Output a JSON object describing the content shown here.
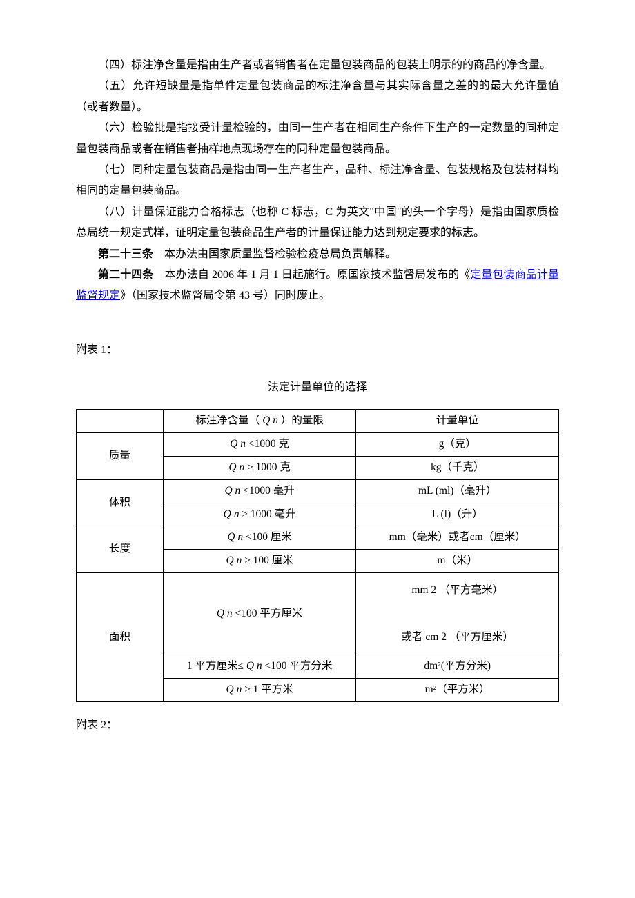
{
  "paragraphs": {
    "p4": "（四）标注净含量是指由生产者或者销售者在定量包装商品的包装上明示的的商品的净含量。",
    "p5": "（五）允许短缺量是指单件定量包装商品的标注净含量与其实际含量之差的的最大允许量值（或者数量）。",
    "p6": "（六）检验批是指接受计量检验的，由同一生产者在相同生产条件下生产的一定数量的同种定量包装商品或者在销售者抽样地点现场存在的同种定量包装商品。",
    "p7": "（七）同种定量包装商品是指由同一生产者生产，品种、标注净含量、包装规格及包装材料均相同的定量包装商品。",
    "p8": "（八）计量保证能力合格标志（也称 C 标志，C 为英文\"中国\"的头一个字母）是指由国家质检总局统一规定式样，证明定量包装商品生产者的计量保证能力达到规定要求的标志。"
  },
  "article23": {
    "label": "第二十三条",
    "text": "　本办法由国家质量监督检验检疫总局负责解释。"
  },
  "article24": {
    "label": "第二十四条",
    "text_before": "　本办法自 2006 年 1 月 1 日起施行。原国家技术监督局发布的《",
    "link_text": "定量包装商品计量监督规定",
    "text_after": "》（国家技术监督局令第 43 号）同时废止。"
  },
  "attachment1": {
    "label": "附表 1：",
    "title": "法定计量单位的选择",
    "header_col2": "标注净含量（ Q n ）的量限",
    "header_col3": "计量单位",
    "rows": [
      {
        "cat": "质量",
        "span": 2,
        "q": "Q n <1000 克",
        "u": "g（克）"
      },
      {
        "q": "Q n ≥ 1000 克",
        "u": "kg（千克）"
      },
      {
        "cat": "体积",
        "span": 2,
        "q": "Q n <1000 毫升",
        "u": "mL (ml)（毫升）"
      },
      {
        "q": "Q n ≥ 1000 毫升",
        "u": "L (l)（升）"
      },
      {
        "cat": "长度",
        "span": 2,
        "q": "Q n <100 厘米",
        "u": "mm（毫米）或者cm（厘米）"
      },
      {
        "q": "Q n ≥ 100 厘米",
        "u": "m（米）"
      },
      {
        "cat": "面积",
        "span": 3,
        "q": "Q n <100 平方厘米",
        "u": "mm 2 （平方毫米）\n\n或者 cm 2 （平方厘米）",
        "tall": true
      },
      {
        "q": "1 平方厘米≤ Q n <100 平方分米",
        "u": "dm²(平方分米)"
      },
      {
        "q": "Q n ≥ 1 平方米",
        "u": "m²（平方米）"
      }
    ]
  },
  "attachment2": {
    "label": "附表 2："
  },
  "style": {
    "body_font_size": 16,
    "line_height": 1.9,
    "text_color": "#000000",
    "link_color": "#0000cc",
    "border_color": "#000000",
    "border_width": 1.5,
    "col_widths_pct": [
      18,
      40,
      42
    ]
  }
}
